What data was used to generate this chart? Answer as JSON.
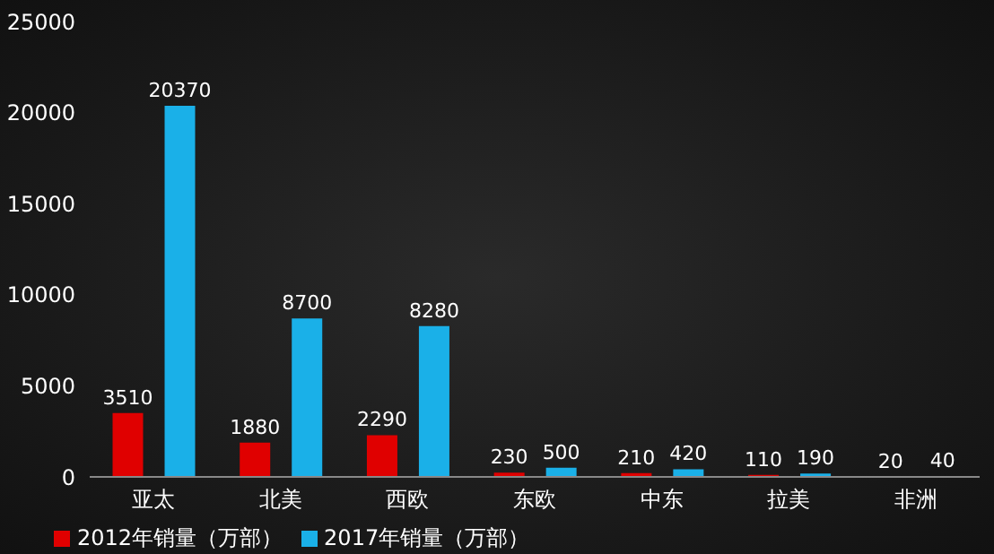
{
  "chart_data": {
    "type": "bar",
    "categories": [
      "亚太",
      "北美",
      "西欧",
      "东欧",
      "中东",
      "拉美",
      "非洲"
    ],
    "series": [
      {
        "name": "2012年销量（万部）",
        "color": "#e00000",
        "values": [
          3510,
          1880,
          2290,
          230,
          210,
          110,
          20
        ]
      },
      {
        "name": "2017年销量（万部）",
        "color": "#1ab0e8",
        "values": [
          20370,
          8700,
          8280,
          500,
          420,
          190,
          40
        ]
      }
    ],
    "ylim": [
      0,
      25000
    ],
    "yticks": [
      0,
      5000,
      10000,
      15000,
      20000,
      25000
    ],
    "grid": false,
    "legend": "bottom left",
    "data_labels": true
  }
}
